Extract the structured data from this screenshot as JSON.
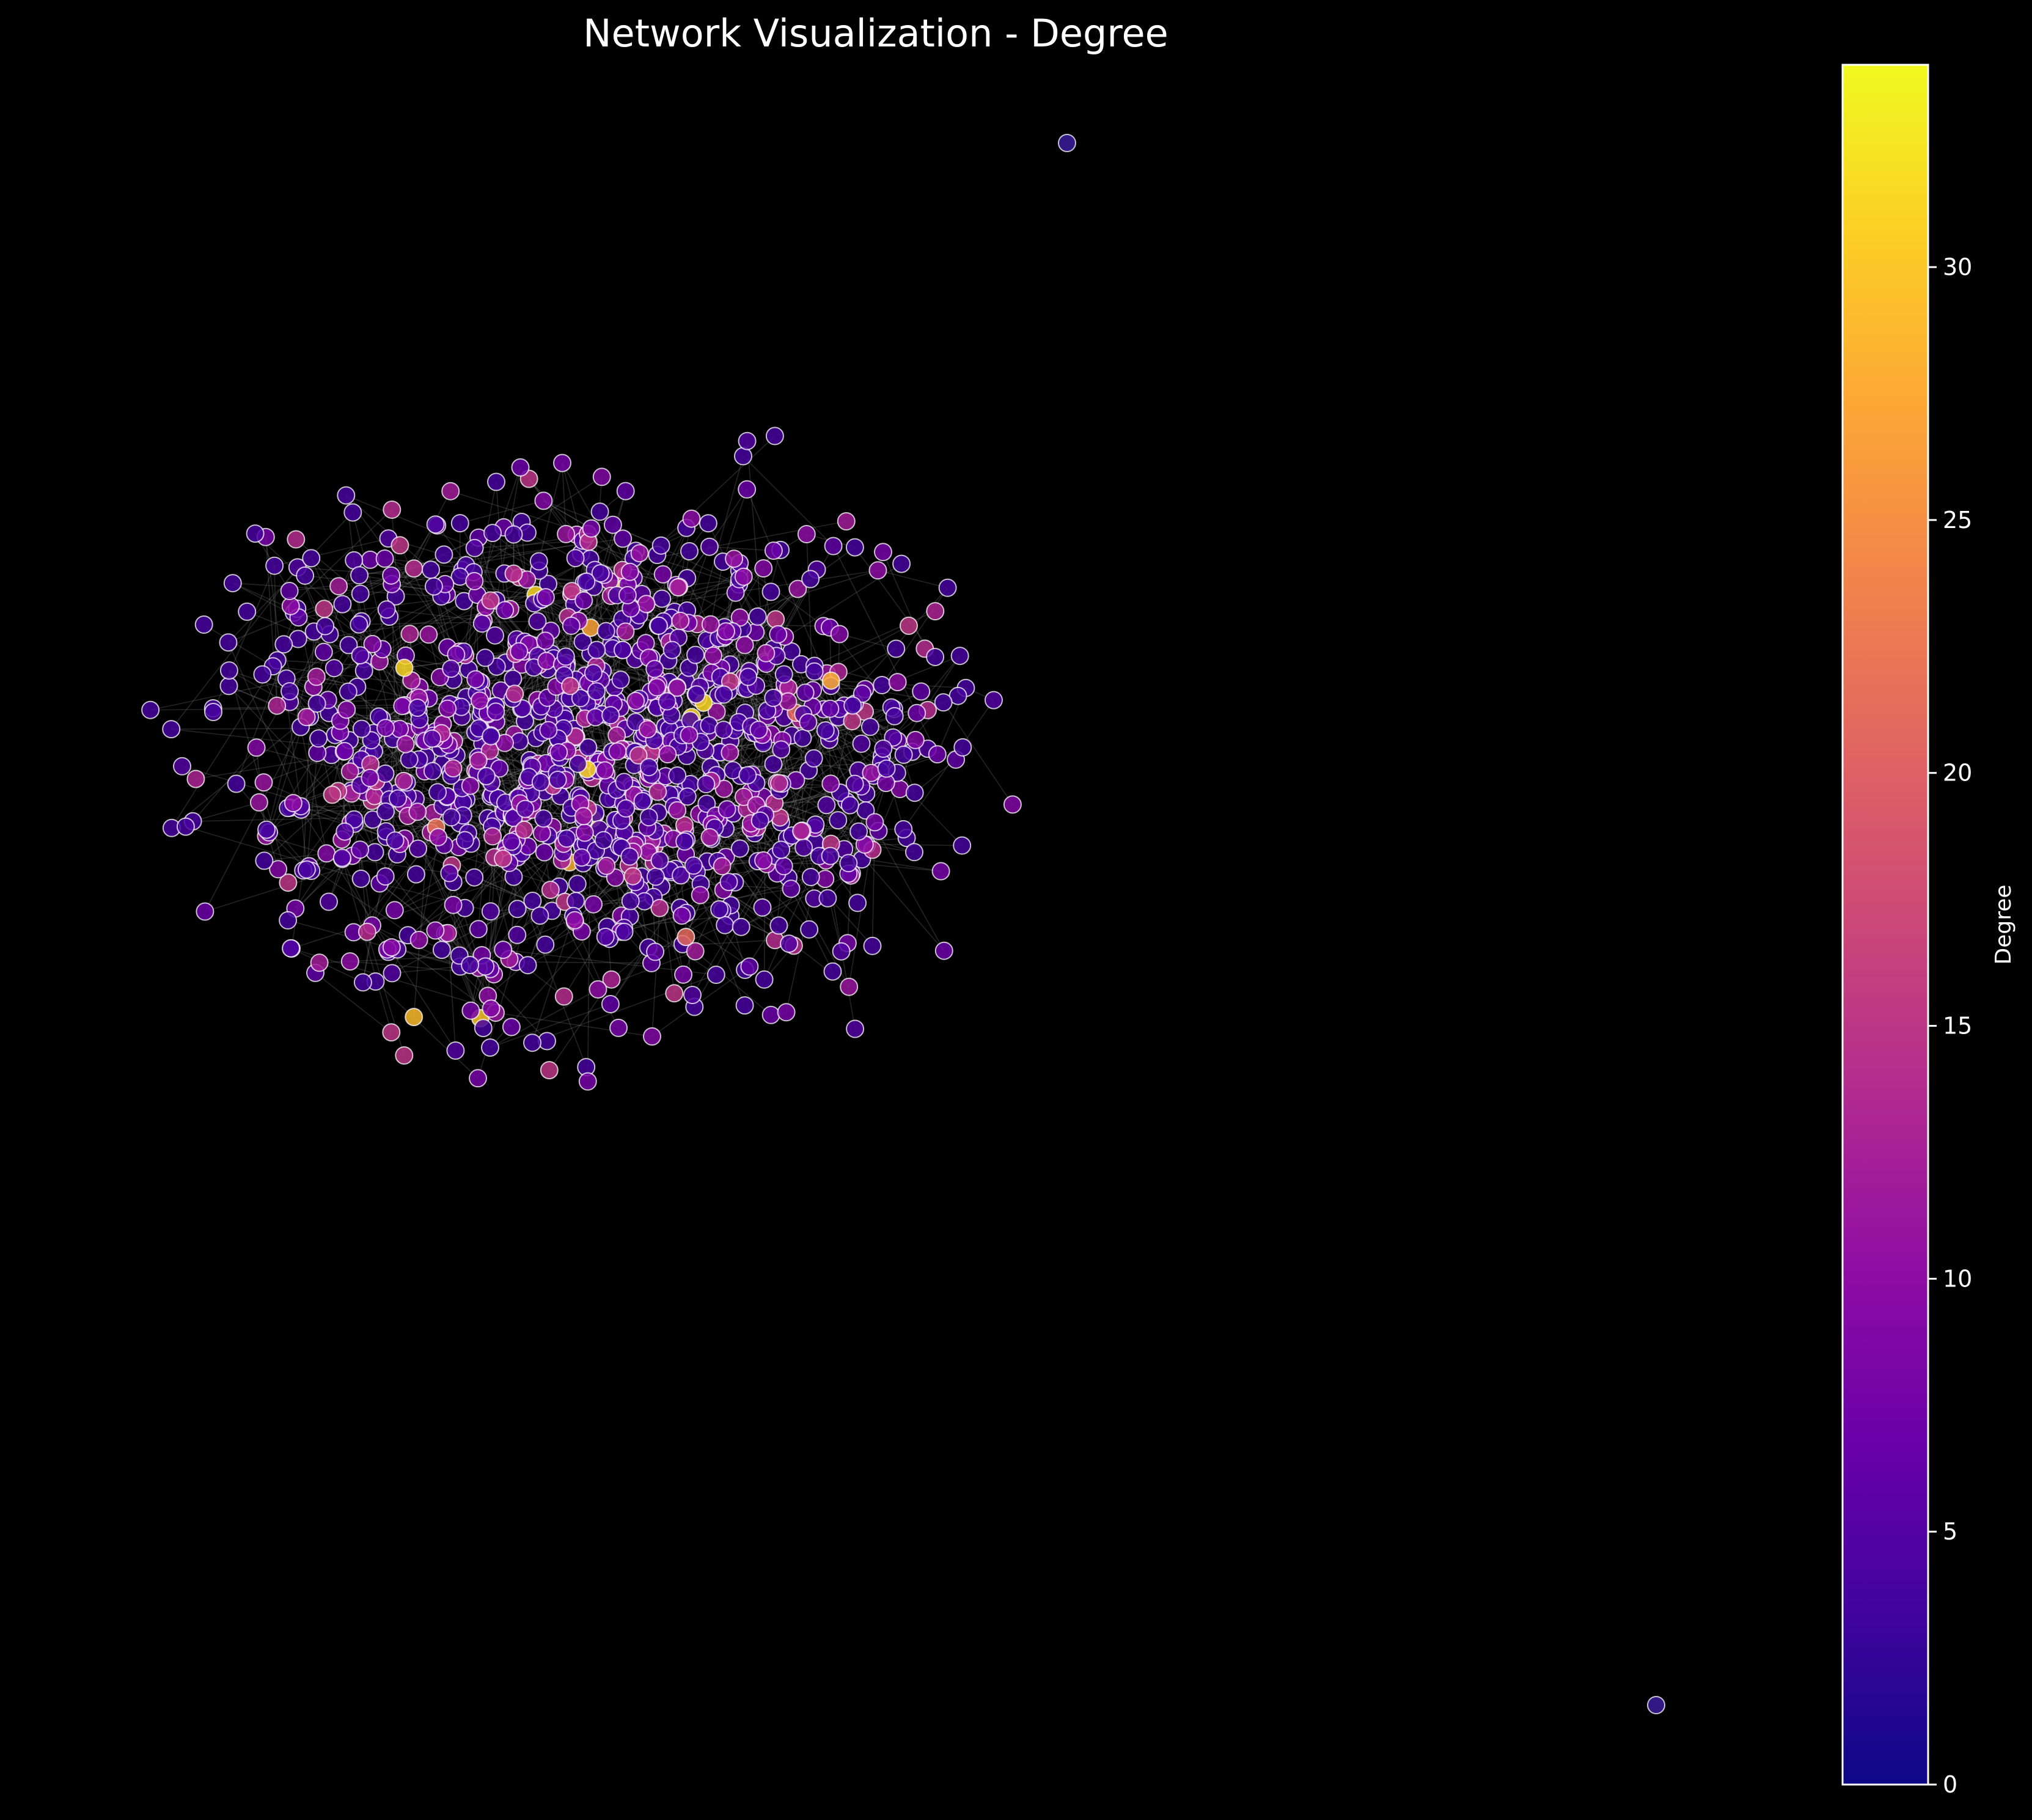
{
  "chart_data": {
    "type": "scatter",
    "subtype": "network-graph",
    "title": "Network Visualization - Degree",
    "background": "#000000",
    "node_edge_color": "#ffffff",
    "edge_color": "#808080",
    "grid": false,
    "axes_visible": false,
    "colorbar": {
      "label": "Degree",
      "colormap": "plasma",
      "range": [
        0,
        34
      ],
      "ticks": [
        "0",
        "5",
        "10",
        "15",
        "20",
        "25",
        "30"
      ],
      "position": "right"
    },
    "visible_marks": {
      "main_cluster_node_count_estimate": 1200,
      "isolated_nodes": 2,
      "highest_degree_nodes_color": "#d9a43a",
      "typical_node_color": "#4b12a6"
    }
  }
}
